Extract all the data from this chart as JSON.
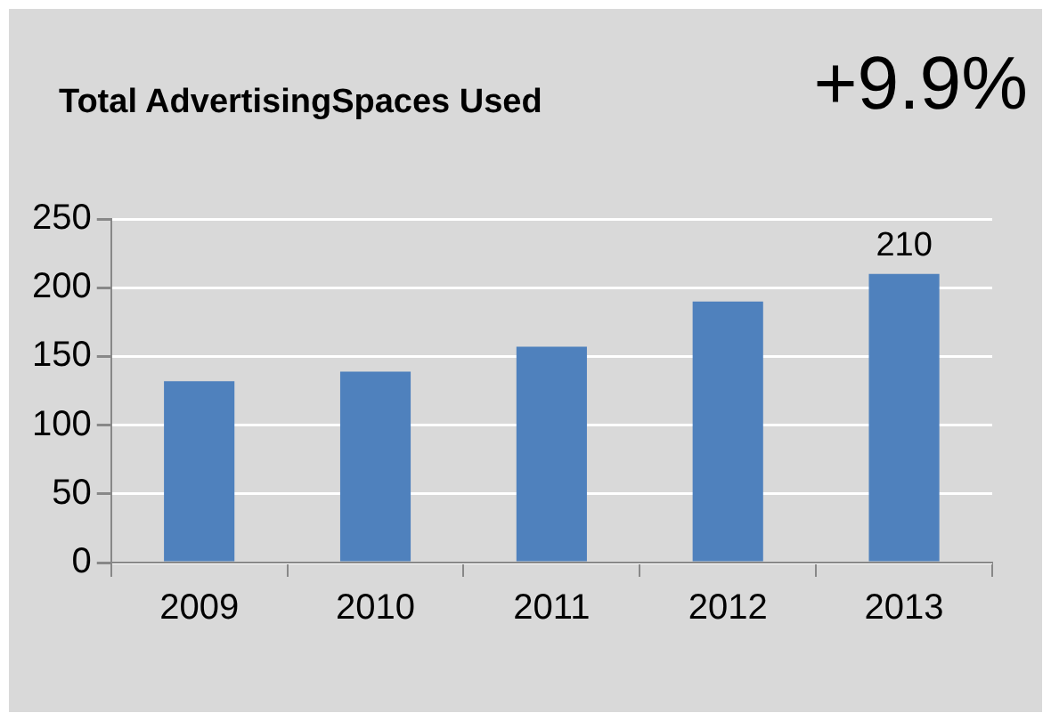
{
  "chart_data": {
    "type": "bar",
    "title": "Total AdvertisingSpaces Used",
    "annotations": [
      "+9.9%"
    ],
    "categories": [
      "2009",
      "2010",
      "2011",
      "2012",
      "2013"
    ],
    "values": [
      132,
      139,
      157,
      190,
      210
    ],
    "color": "#4f81bd",
    "value_labels": [
      null,
      null,
      null,
      null,
      "210"
    ],
    "ylim": [
      0,
      250
    ],
    "yticks": [
      0,
      50,
      100,
      150,
      200,
      250
    ],
    "grid": "y",
    "legend": false
  }
}
